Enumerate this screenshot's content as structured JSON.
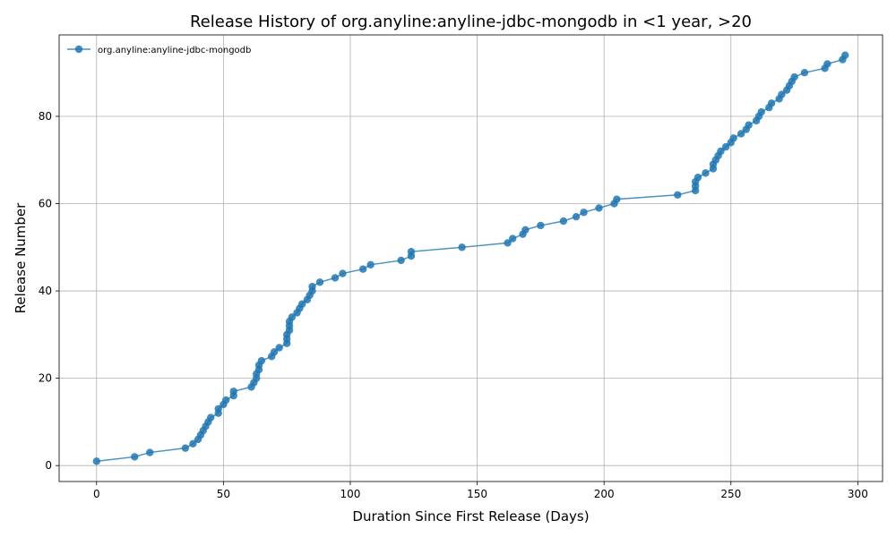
{
  "chart_data": {
    "type": "line",
    "title": "Release History of org.anyline:anyline-jdbc-mongodb in <1 year, >20",
    "xlabel": "Duration Since First Release (Days)",
    "ylabel": "Release Number",
    "xlim": [
      -14.75,
      309.75
    ],
    "ylim": [
      -3.65,
      98.65
    ],
    "xticks": [
      0,
      50,
      100,
      150,
      200,
      250,
      300
    ],
    "yticks": [
      0,
      20,
      40,
      60,
      80
    ],
    "grid": true,
    "legend_position": "top-left",
    "series": [
      {
        "name": "org.anyline:anyline-jdbc-mongodb",
        "color": "#1f77b4",
        "marker": "circle",
        "x": [
          0,
          15,
          21,
          35,
          38,
          40,
          41,
          42,
          43,
          44,
          45,
          48,
          48,
          50,
          51,
          54,
          54,
          61,
          62,
          63,
          63,
          64,
          64,
          65,
          69,
          70,
          72,
          75,
          75,
          75,
          76,
          76,
          76,
          77,
          79,
          80,
          81,
          83,
          84,
          85,
          85,
          88,
          94,
          97,
          105,
          108,
          120,
          124,
          124,
          144,
          162,
          164,
          168,
          169,
          175,
          184,
          189,
          192,
          198,
          204,
          205,
          229,
          236,
          236,
          236,
          237,
          240,
          243,
          243,
          244,
          245,
          246,
          248,
          250,
          251,
          254,
          256,
          257,
          260,
          261,
          262,
          265,
          266,
          269,
          270,
          272,
          273,
          274,
          275,
          279,
          287,
          288,
          294,
          295
        ],
        "y": [
          1,
          2,
          3,
          4,
          5,
          6,
          7,
          8,
          9,
          10,
          11,
          12,
          13,
          14,
          15,
          16,
          17,
          18,
          19,
          20,
          21,
          22,
          23,
          24,
          25,
          26,
          27,
          28,
          29,
          30,
          31,
          32,
          33,
          34,
          35,
          36,
          37,
          38,
          39,
          40,
          41,
          42,
          43,
          44,
          45,
          46,
          47,
          48,
          49,
          50,
          51,
          52,
          53,
          54,
          55,
          56,
          57,
          58,
          59,
          60,
          61,
          62,
          63,
          64,
          65,
          66,
          67,
          68,
          69,
          70,
          71,
          72,
          73,
          74,
          75,
          76,
          77,
          78,
          79,
          80,
          81,
          82,
          83,
          84,
          85,
          86,
          87,
          88,
          89,
          90,
          91,
          92,
          93,
          94
        ]
      }
    ]
  }
}
